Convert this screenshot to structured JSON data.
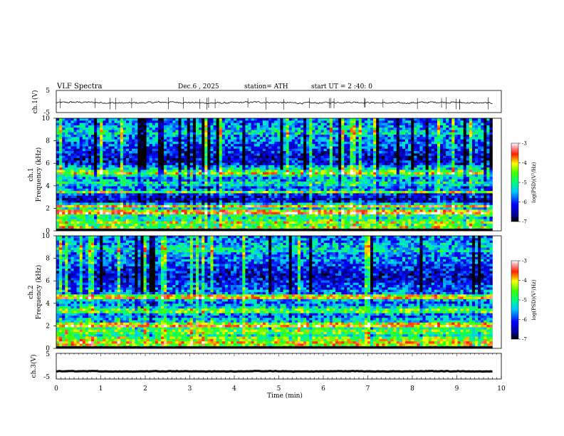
{
  "header": {
    "title": "VLF  Spectra",
    "date": "Dec.6  , 2025",
    "station": "station= ATH",
    "start_ut": "start  UT  =   2  :40: 0"
  },
  "chart_data": [
    {
      "id": "ch1-waveform",
      "type": "line",
      "ylabel": "ch.1(V)",
      "yticks": [
        "5",
        "-5"
      ],
      "ylim": [
        -5,
        5
      ],
      "xlim": [
        0,
        10
      ],
      "baseline": -0.5,
      "noise_amplitude": 0.6,
      "data_end_min": 9.8
    },
    {
      "id": "ch1-spectrogram",
      "type": "heatmap",
      "ylabel": "ch.1\nFrequency (kHz)",
      "ylabel_lines": [
        "ch.1",
        "Frequency (kHz)"
      ],
      "yticks": [
        "10",
        "8",
        "6",
        "4",
        "2",
        "0"
      ],
      "ylim": [
        0,
        10
      ],
      "xlim": [
        0,
        10
      ],
      "data_end_min": 9.8,
      "colorbar": {
        "label": "log(PSD)(V²/Hz)",
        "ticks": [
          "-3",
          "-4",
          "-5",
          "-6",
          "-7"
        ],
        "range": [
          -7,
          -3
        ]
      },
      "bands_khz": [
        0.7,
        1.6,
        2.2,
        3.5,
        4.2,
        5.0,
        5.6
      ],
      "bright_lines_khz": [
        0.3,
        1.7,
        2.2,
        3.4,
        5.2
      ]
    },
    {
      "id": "ch2-spectrogram",
      "type": "heatmap",
      "ylabel": "ch.2\nFrequency (kHz)",
      "ylabel_lines": [
        "ch.2",
        "Frequency (kHz)"
      ],
      "yticks": [
        "10",
        "8",
        "6",
        "4",
        "2",
        "0"
      ],
      "ylim": [
        0,
        10
      ],
      "xlim": [
        0,
        10
      ],
      "data_end_min": 9.8,
      "colorbar": {
        "label": "log(PSD)(V²/Hz)",
        "ticks": [
          "-3",
          "-4",
          "-5",
          "-6",
          "-7"
        ],
        "range": [
          -7,
          -3
        ]
      },
      "bands_khz": [
        0.8,
        1.5,
        2.0,
        2.6,
        3.1,
        3.6,
        4.5
      ],
      "bright_lines_khz": [
        0.4,
        2.1,
        3.3,
        4.6
      ]
    },
    {
      "id": "ch3-waveform",
      "type": "line",
      "ylabel": "ch.3(V)",
      "yticks": [
        "5",
        "-5"
      ],
      "ylim": [
        -5,
        5
      ],
      "xlim": [
        0,
        10
      ],
      "baseline": -2,
      "noise_amplitude": 0.15,
      "data_end_min": 9.8
    }
  ],
  "x_axis": {
    "label": "Time  (min)",
    "ticks": [
      "0",
      "1",
      "2",
      "3",
      "4",
      "5",
      "6",
      "7",
      "8",
      "9",
      "10"
    ]
  }
}
